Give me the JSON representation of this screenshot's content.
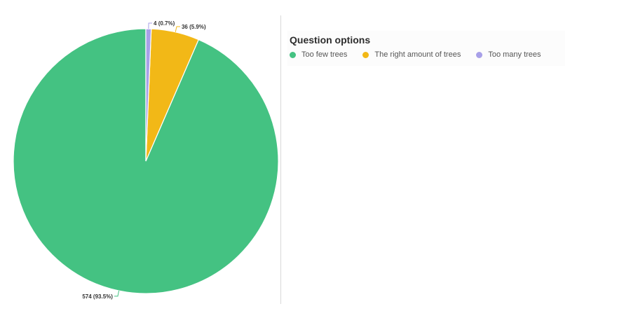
{
  "legend": {
    "title": "Question options"
  },
  "chart_data": {
    "type": "pie",
    "title": "",
    "start": "12 o'clock",
    "direction": "counterclockwise",
    "slices": [
      {
        "label": "Too few trees",
        "value": 574,
        "percent": 93.5,
        "data_label": "574 (93.5%)",
        "color": "#44c282"
      },
      {
        "label": "The right amount of trees",
        "value": 36,
        "percent": 5.9,
        "data_label": "36 (5.9%)",
        "color": "#f2b817"
      },
      {
        "label": "Too many trees",
        "value": 4,
        "percent": 0.7,
        "data_label": "4 (0.7%)",
        "color": "#a8a0e8"
      }
    ]
  }
}
